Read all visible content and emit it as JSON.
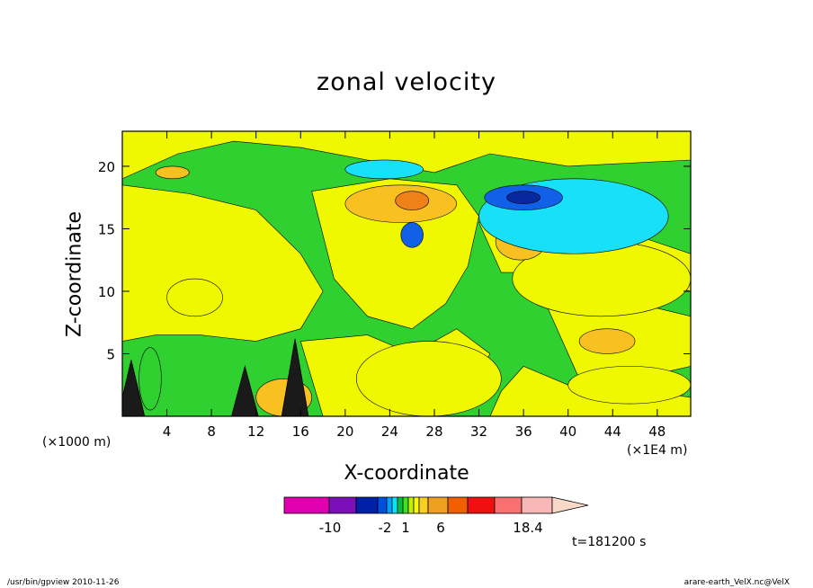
{
  "chart_data": {
    "type": "heatmap",
    "title": "zonal velocity",
    "xlabel": "X-coordinate",
    "ylabel": "Z-coordinate",
    "x_unit_label": "(×1000 m)",
    "x_scale_label": "(×1E4 m)",
    "time_label": "t=181200 s",
    "xlim": [
      0,
      51
    ],
    "ylim": [
      0,
      22.8
    ],
    "x_ticks": [
      "4",
      "8",
      "12",
      "16",
      "20",
      "24",
      "28",
      "32",
      "36",
      "40",
      "44",
      "48"
    ],
    "x_tick_values": [
      4,
      8,
      12,
      16,
      20,
      24,
      28,
      32,
      36,
      40,
      44,
      48
    ],
    "y_ticks": [
      "5",
      "10",
      "15",
      "20"
    ],
    "y_tick_values": [
      5,
      10,
      15,
      20
    ],
    "colorbar": {
      "colors": [
        "#e000b0",
        "#7b10b8",
        "#0020a8",
        "#0050e0",
        "#00a0ff",
        "#00e8f8",
        "#00c040",
        "#40e020",
        "#c0f000",
        "#f8f800",
        "#f8d020",
        "#f0a020",
        "#f06000",
        "#f01010",
        "#f87070",
        "#f8b8b8",
        "#f8d8c8"
      ],
      "tick_labels": [
        "-10",
        "-2",
        "1",
        "6",
        "18.4"
      ]
    },
    "regions": [
      {
        "level": "green",
        "x": [
          1.5,
          3.5
        ],
        "y": [
          0.5,
          5.5
        ]
      },
      {
        "level": "yellow",
        "x": [
          4,
          9
        ],
        "y": [
          8,
          11
        ]
      },
      {
        "level": "yellow",
        "x": [
          21,
          34
        ],
        "y": [
          0,
          6
        ]
      },
      {
        "level": "yellow",
        "x": [
          35,
          51
        ],
        "y": [
          8,
          14
        ]
      },
      {
        "level": "yellow",
        "x": [
          40,
          51
        ],
        "y": [
          1,
          4
        ]
      },
      {
        "level": "orange",
        "x": [
          3,
          6
        ],
        "y": [
          19,
          20
        ]
      },
      {
        "level": "orange",
        "x": [
          20,
          30
        ],
        "y": [
          15.5,
          18.5
        ]
      },
      {
        "level": "orange-dark",
        "x": [
          24.5,
          27.5
        ],
        "y": [
          16.5,
          18
        ]
      },
      {
        "level": "orange",
        "x": [
          33.5,
          38
        ],
        "y": [
          12.5,
          15.5
        ]
      },
      {
        "level": "orange",
        "x": [
          41,
          46
        ],
        "y": [
          5,
          7
        ]
      },
      {
        "level": "orange",
        "x": [
          12,
          17
        ],
        "y": [
          0,
          3
        ]
      },
      {
        "level": "blue-light",
        "x": [
          32,
          49
        ],
        "y": [
          13,
          19
        ]
      },
      {
        "level": "blue",
        "x": [
          32.5,
          39.5
        ],
        "y": [
          16.5,
          18.5
        ]
      },
      {
        "level": "blue-dark",
        "x": [
          34.5,
          37.5
        ],
        "y": [
          17,
          18
        ]
      },
      {
        "level": "blue-light",
        "x": [
          20,
          27
        ],
        "y": [
          19,
          20.5
        ]
      },
      {
        "level": "blue",
        "x": [
          25,
          27
        ],
        "y": [
          13.5,
          15.5
        ]
      }
    ]
  },
  "footer": {
    "left": "/usr/bin/gpview  2010-11-26",
    "right": "arare-earth_VelX.nc@VelX"
  }
}
